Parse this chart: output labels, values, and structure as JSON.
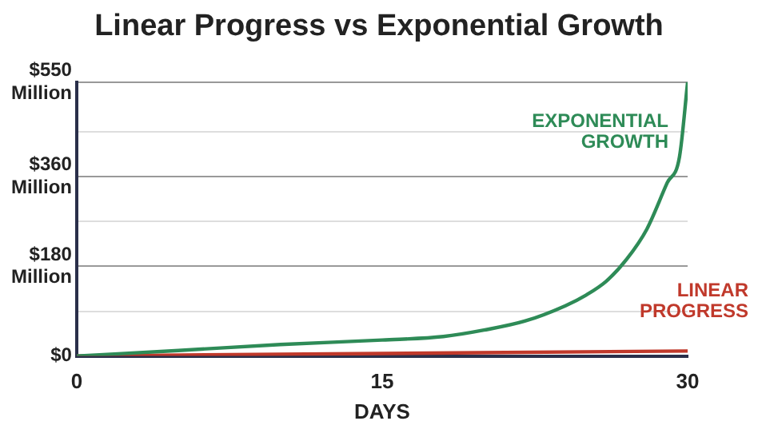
{
  "chart_data": {
    "type": "line",
    "title": "Linear Progress vs Exponential Growth",
    "xlabel": "DAYS",
    "xlim": [
      0,
      30
    ],
    "xticks": [
      0,
      15,
      30
    ],
    "ylim": [
      0,
      550
    ],
    "yticks": [
      {
        "value": 0,
        "label": "$0"
      },
      {
        "value": 90,
        "label": null
      },
      {
        "value": 180,
        "label": "$180\nMillion"
      },
      {
        "value": 270,
        "label": null
      },
      {
        "value": 360,
        "label": "$360\nMillion"
      },
      {
        "value": 450,
        "label": null
      },
      {
        "value": 550,
        "label": "$550\nMillion"
      }
    ],
    "grid": "y",
    "marker": "none",
    "line_style": "solid",
    "legend": false,
    "series": [
      {
        "name": "EXPONENTIAL\nGROWTH",
        "color": "#2e8b57",
        "x": [
          0,
          5,
          10,
          15,
          18,
          20,
          22,
          24,
          25,
          26,
          27,
          28,
          29,
          29.6,
          30
        ],
        "values": [
          0,
          11,
          23,
          32,
          39,
          52,
          70,
          101,
          122,
          150,
          194,
          255,
          348,
          400,
          550
        ]
      },
      {
        "name": "LINEAR\nPROGRESS",
        "color": "#c0392b",
        "x": [
          0,
          30
        ],
        "values": [
          0,
          10
        ]
      }
    ]
  }
}
